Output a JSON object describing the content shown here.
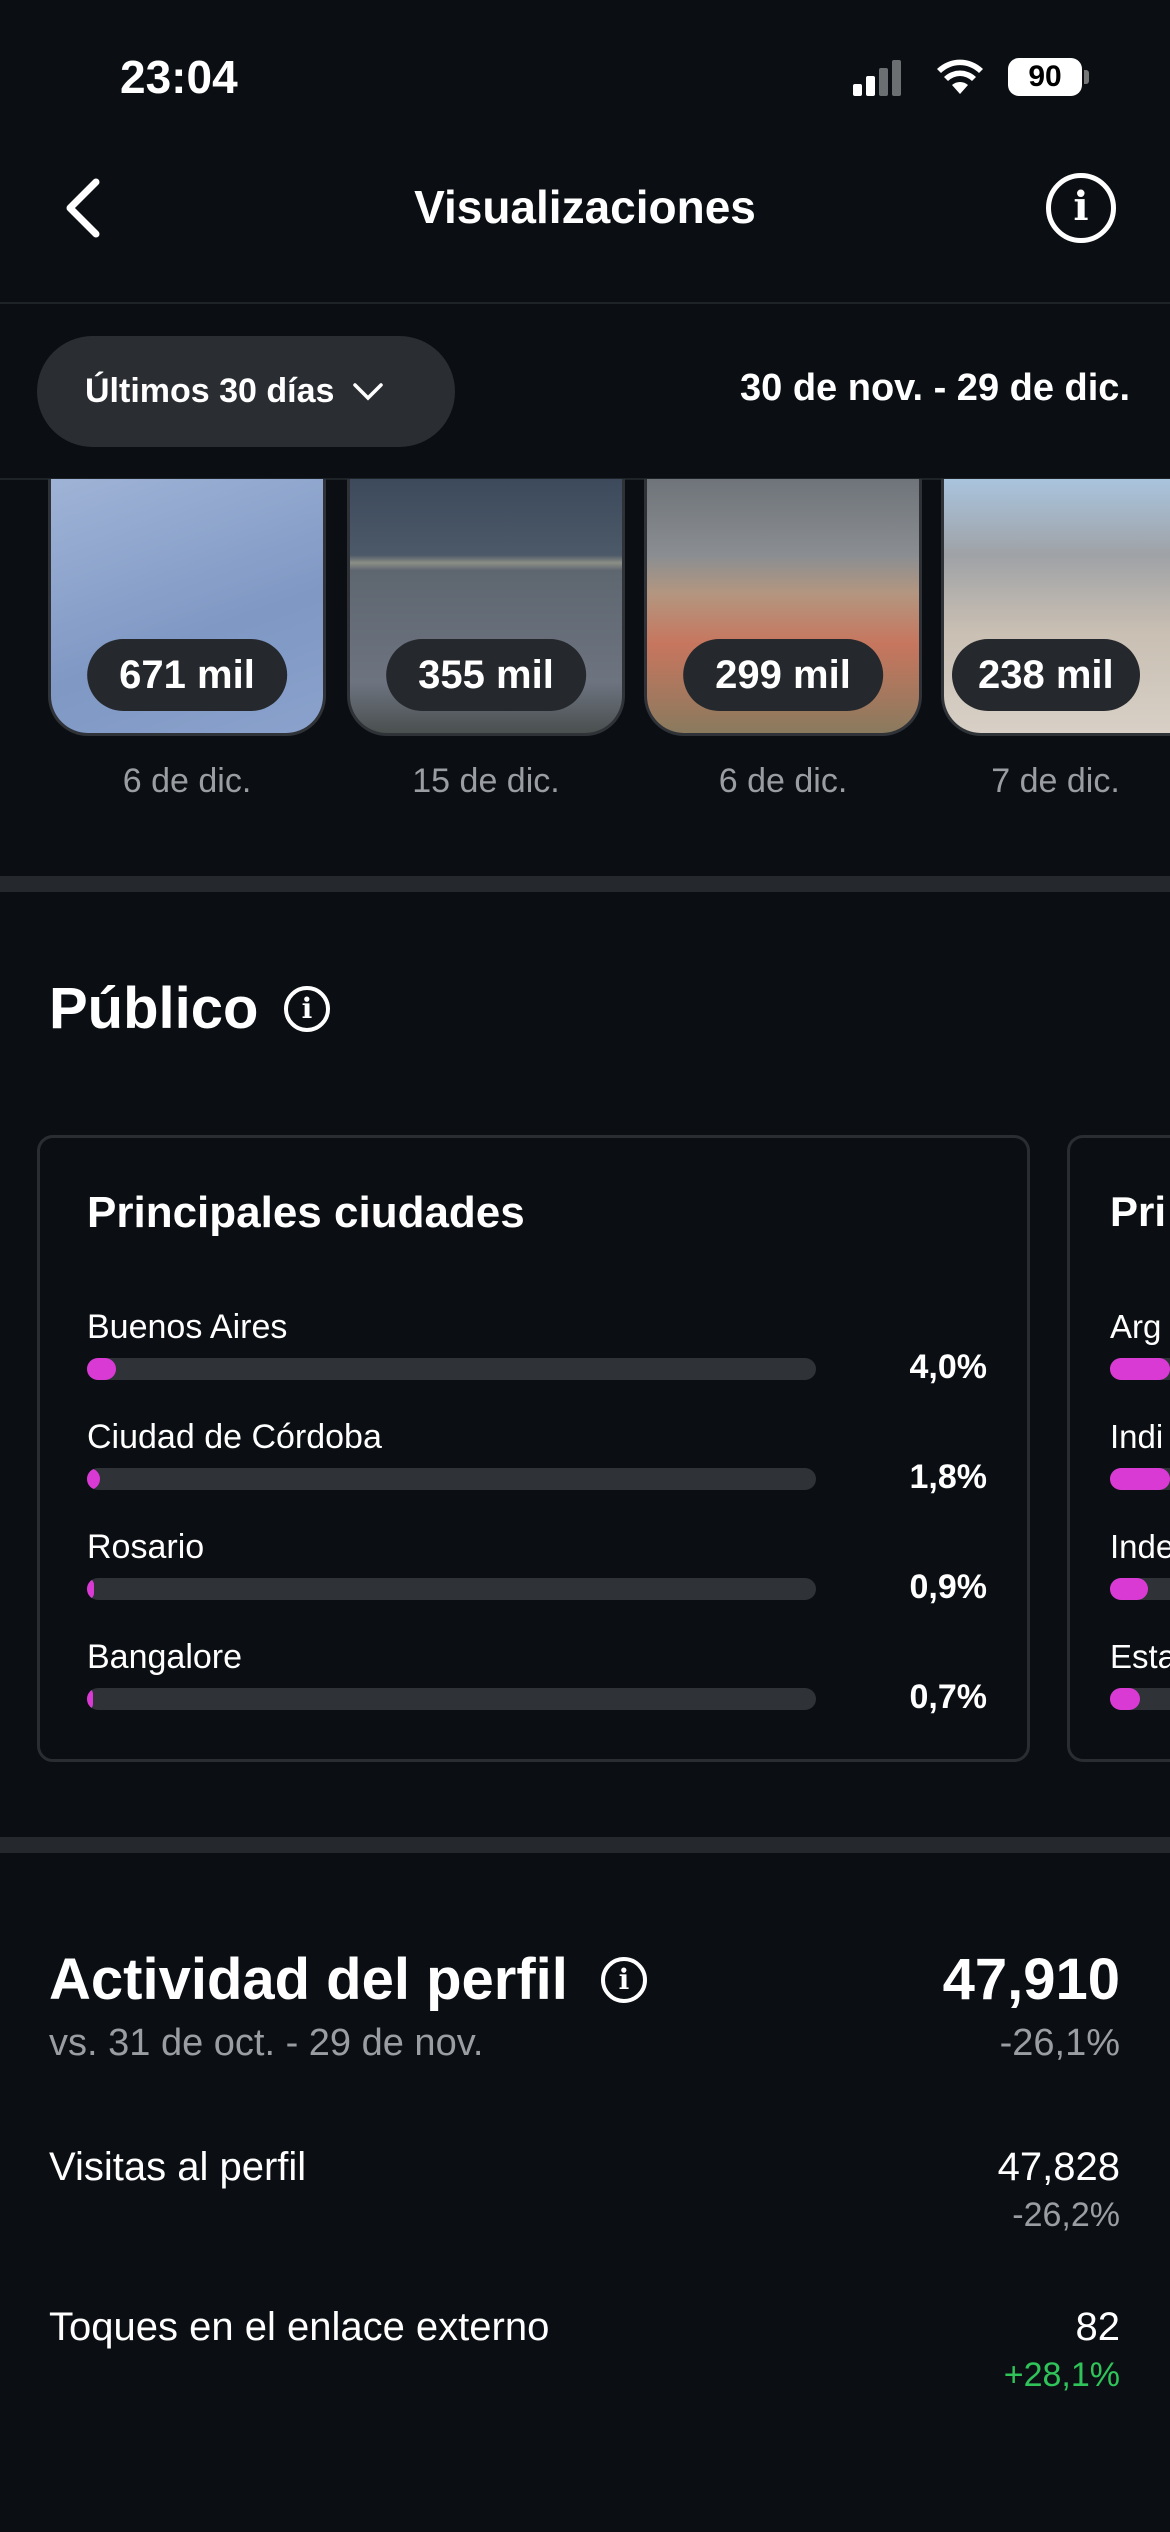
{
  "status_bar": {
    "time": "23:04",
    "battery": "90"
  },
  "header": {
    "title": "Visualizaciones",
    "back_icon": "chevron-left-icon",
    "info_icon": "info-icon"
  },
  "filter": {
    "period": "Últimos 30 días",
    "range": "30 de nov. - 29 de dic."
  },
  "top_content": [
    {
      "views": "671 mil",
      "date": "6 de dic."
    },
    {
      "views": "355 mil",
      "date": "15 de dic."
    },
    {
      "views": "299 mil",
      "date": "6 de dic."
    },
    {
      "views": "238 mil",
      "date": "7 de dic."
    }
  ],
  "audience": {
    "title": "Público",
    "cities": {
      "title": "Principales ciudades",
      "rows": [
        {
          "label": "Buenos Aires",
          "value": "4,0%",
          "fraction": 0.04
        },
        {
          "label": "Ciudad de Córdoba",
          "value": "1,8%",
          "fraction": 0.018
        },
        {
          "label": "Rosario",
          "value": "0,9%",
          "fraction": 0.009
        },
        {
          "label": "Bangalore",
          "value": "0,7%",
          "fraction": 0.007
        }
      ]
    },
    "countries_partial": {
      "title": "Pri",
      "rows": [
        {
          "label": "Arg"
        },
        {
          "label": "Indi"
        },
        {
          "label": "Inde"
        },
        {
          "label": "Esta"
        }
      ]
    }
  },
  "profile_activity": {
    "title": "Actividad del perfil",
    "comparison": "vs. 31 de oct. - 29 de nov.",
    "value": "47,910",
    "change": "-26,1%",
    "metrics": [
      {
        "label": "Visitas al perfil",
        "value": "47,828",
        "change": "-26,2%",
        "color": "#9a9ea3"
      },
      {
        "label": "Toques en el enlace externo",
        "value": "82",
        "change": "+28,1%",
        "color": "#2fc35a"
      }
    ]
  },
  "colors": {
    "accent": "#d93ad4",
    "positive": "#2fc35a"
  }
}
